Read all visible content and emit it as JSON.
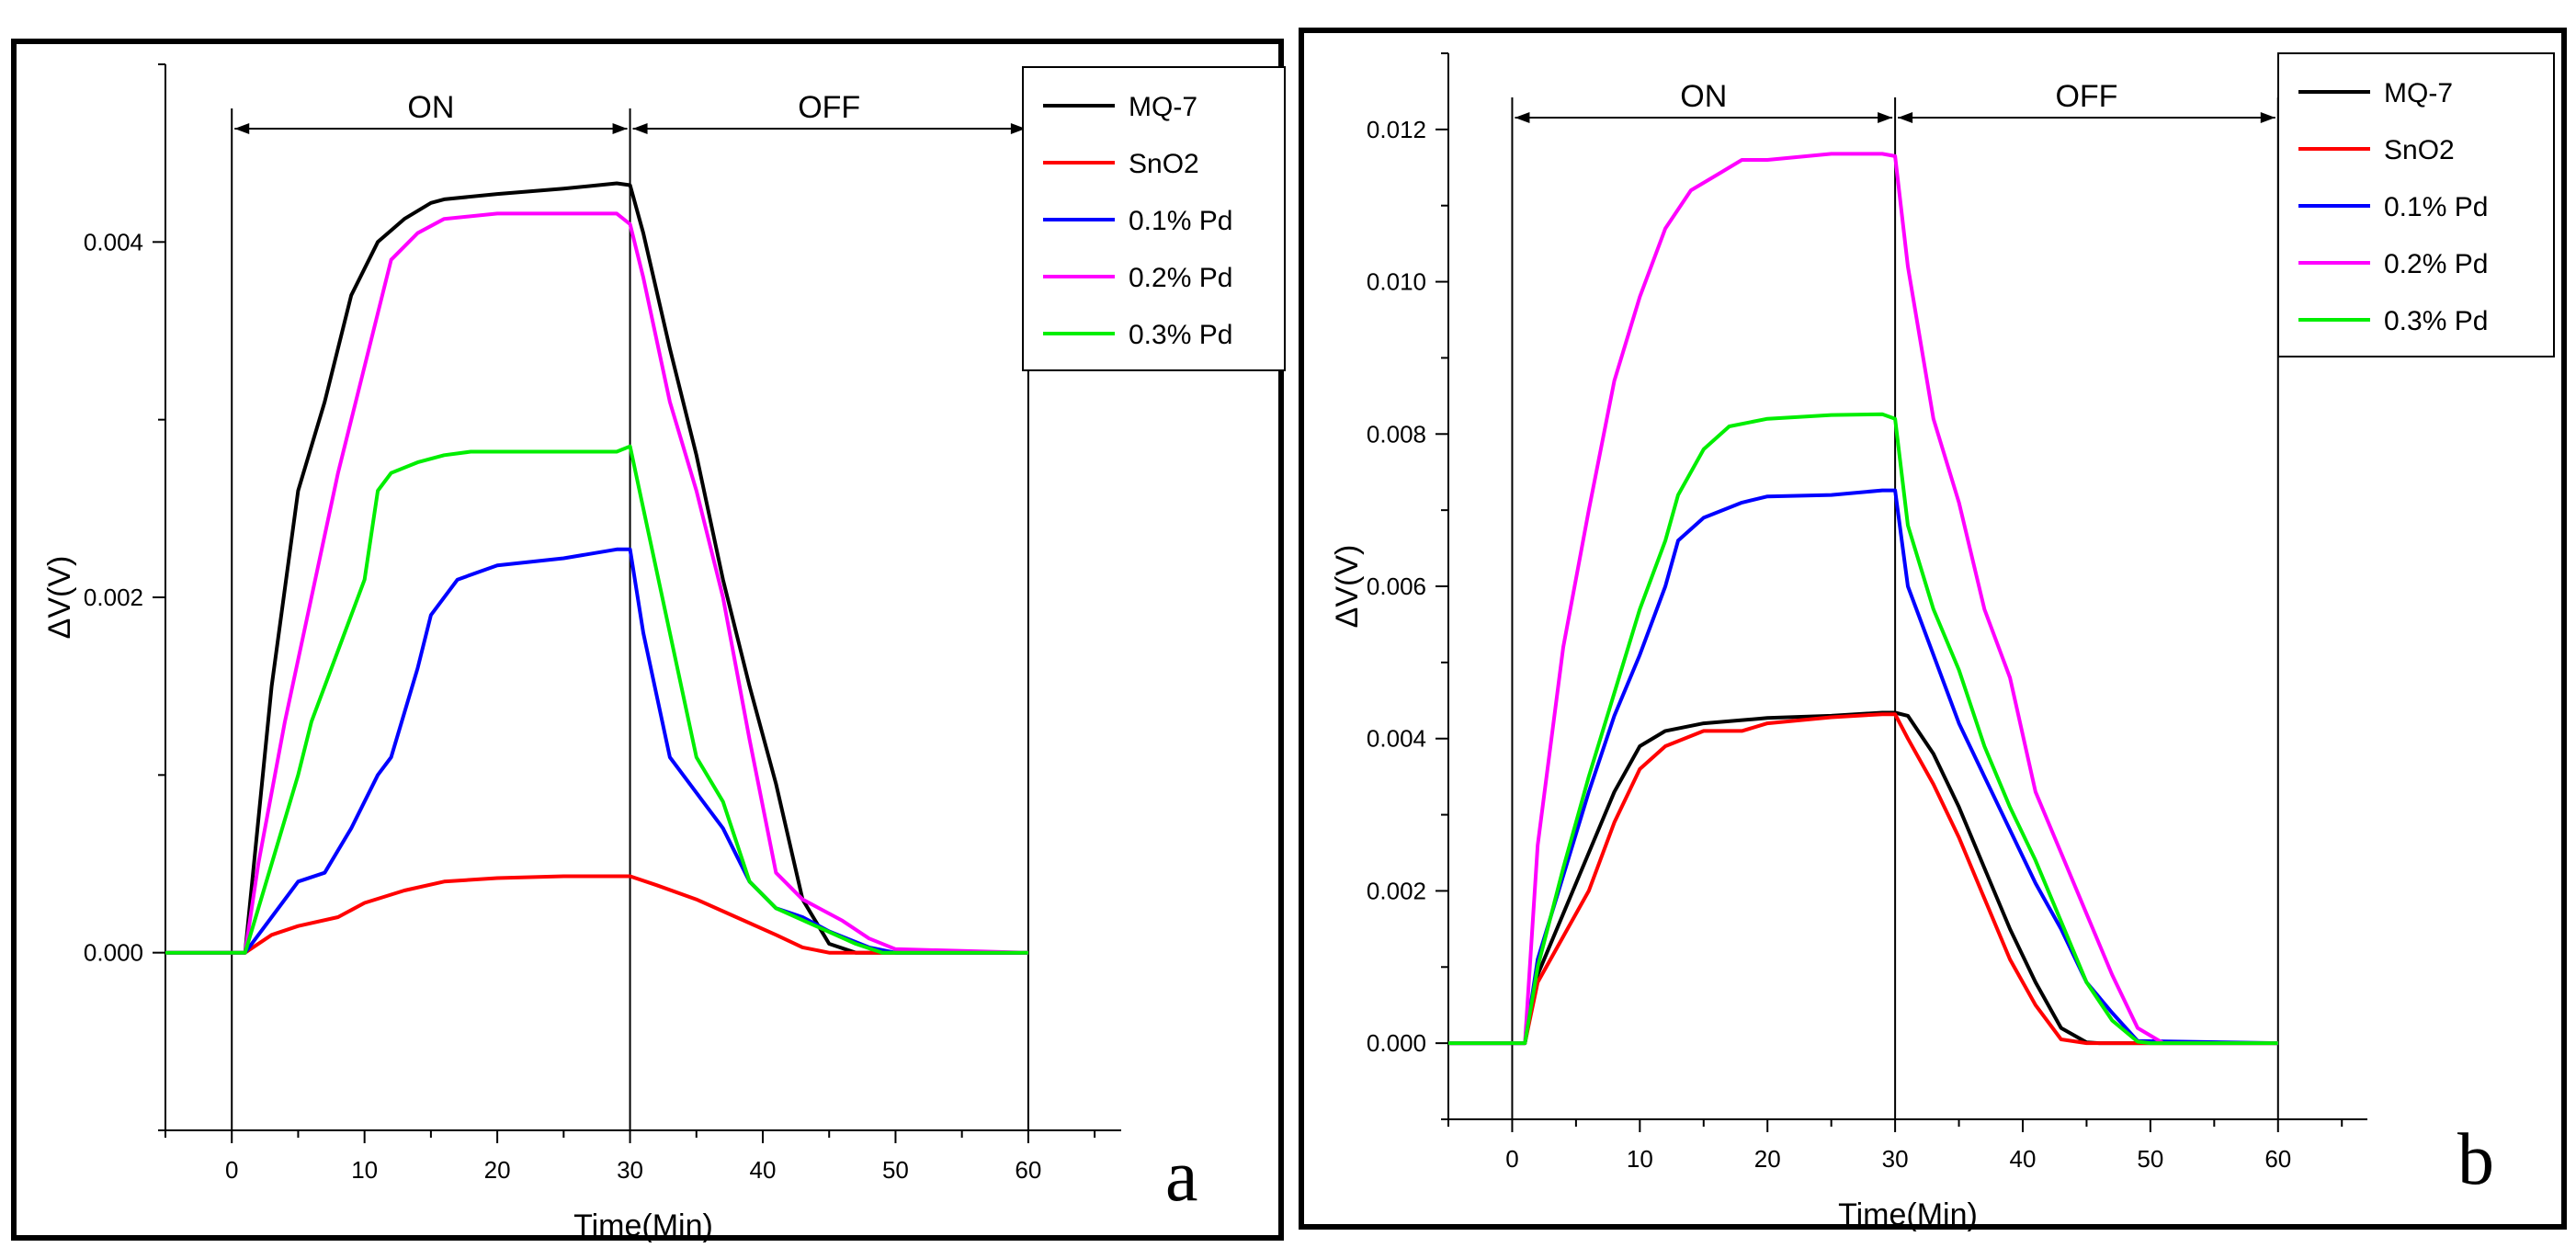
{
  "chart_data": [
    {
      "id": "a",
      "type": "line",
      "panel_label": "a",
      "xlabel": "Time(Min)",
      "ylabel": "ΔV(V)",
      "xlim": [
        -5,
        67
      ],
      "ylim": [
        -0.001,
        0.005
      ],
      "xticks": [
        0,
        10,
        20,
        30,
        40,
        50,
        60
      ],
      "xtick_labels": [
        "0",
        "10",
        "20",
        "30",
        "40",
        "50",
        "60"
      ],
      "yticks": [
        0.0,
        0.002,
        0.004
      ],
      "ytick_labels": [
        "0.000",
        "0.002",
        "0.004"
      ],
      "regions": [
        {
          "label": "ON",
          "start": 0,
          "end": 30
        },
        {
          "label": "OFF",
          "start": 30,
          "end": 60
        }
      ],
      "legend_position": "top-right",
      "series": [
        {
          "name": "MQ-7",
          "color": "#000000",
          "x": [
            -5,
            1,
            3,
            5,
            7,
            9,
            11,
            13,
            15,
            16,
            20,
            25,
            29,
            30,
            31,
            33,
            35,
            37,
            39,
            41,
            43,
            45,
            47,
            60
          ],
          "y": [
            0,
            0,
            0.0015,
            0.0026,
            0.0031,
            0.0037,
            0.004,
            0.00413,
            0.00422,
            0.00424,
            0.00427,
            0.0043,
            0.00433,
            0.00432,
            0.00405,
            0.0034,
            0.0028,
            0.0021,
            0.0015,
            0.00095,
            0.0003,
            5e-05,
            0,
            0
          ]
        },
        {
          "name": "SnO2",
          "color": "#ff0000",
          "x": [
            -5,
            1,
            3,
            5,
            8,
            10,
            13,
            16,
            20,
            25,
            29,
            30,
            32,
            35,
            38,
            41,
            43,
            45,
            47,
            60
          ],
          "y": [
            0,
            0,
            0.0001,
            0.00015,
            0.0002,
            0.00028,
            0.00035,
            0.0004,
            0.00042,
            0.00043,
            0.00043,
            0.00043,
            0.00038,
            0.0003,
            0.0002,
            0.0001,
            3e-05,
            0,
            0,
            0
          ]
        },
        {
          "name": "0.1% Pd",
          "color": "#0000ff",
          "x": [
            -5,
            1,
            3,
            5,
            7,
            9,
            11,
            12,
            14,
            15,
            17,
            20,
            25,
            29,
            30,
            31,
            33,
            35,
            37,
            39,
            41,
            43,
            45,
            48,
            50,
            60
          ],
          "y": [
            0,
            0,
            0.0002,
            0.0004,
            0.00045,
            0.0007,
            0.001,
            0.0011,
            0.0016,
            0.0019,
            0.0021,
            0.00218,
            0.00222,
            0.00227,
            0.00227,
            0.0018,
            0.0011,
            0.0009,
            0.0007,
            0.0004,
            0.00025,
            0.0002,
            0.00012,
            3e-05,
            0,
            0
          ]
        },
        {
          "name": "0.2% Pd",
          "color": "#ff00ff",
          "x": [
            -5,
            1,
            2,
            4,
            6,
            8,
            10,
            12,
            14,
            16,
            20,
            25,
            29,
            30,
            31,
            33,
            35,
            37,
            39,
            41,
            43,
            46,
            48,
            50,
            60
          ],
          "y": [
            0,
            0,
            0.0005,
            0.0013,
            0.002,
            0.0027,
            0.0033,
            0.0039,
            0.00405,
            0.00413,
            0.00416,
            0.00416,
            0.00416,
            0.0041,
            0.0038,
            0.0031,
            0.0026,
            0.002,
            0.0012,
            0.00045,
            0.0003,
            0.00018,
            8e-05,
            2e-05,
            0
          ]
        },
        {
          "name": "0.3% Pd",
          "color": "#00ee00",
          "x": [
            -5,
            1,
            3,
            5,
            6,
            8,
            10,
            11,
            12,
            14,
            16,
            18,
            20,
            25,
            29,
            30,
            31,
            33,
            35,
            37,
            39,
            41,
            44,
            47,
            49,
            60
          ],
          "y": [
            0,
            0,
            0.0005,
            0.001,
            0.0013,
            0.0017,
            0.0021,
            0.0026,
            0.0027,
            0.00276,
            0.0028,
            0.00282,
            0.00282,
            0.00282,
            0.00282,
            0.00285,
            0.0025,
            0.0018,
            0.0011,
            0.00085,
            0.0004,
            0.00025,
            0.00015,
            5e-05,
            0,
            0
          ]
        }
      ]
    },
    {
      "id": "b",
      "type": "line",
      "panel_label": "b",
      "xlabel": "Time(Min)",
      "ylabel": "ΔV(V)",
      "xlim": [
        -5,
        67
      ],
      "ylim": [
        -0.001,
        0.013
      ],
      "xticks": [
        0,
        10,
        20,
        30,
        40,
        50,
        60
      ],
      "xtick_labels": [
        "0",
        "10",
        "20",
        "30",
        "40",
        "50",
        "60"
      ],
      "yticks": [
        0.0,
        0.002,
        0.004,
        0.006,
        0.008,
        0.01,
        0.012
      ],
      "ytick_labels": [
        "0.000",
        "0.002",
        "0.004",
        "0.006",
        "0.008",
        "0.010",
        "0.012"
      ],
      "regions": [
        {
          "label": "ON",
          "start": 0,
          "end": 30
        },
        {
          "label": "OFF",
          "start": 30,
          "end": 60
        }
      ],
      "legend_position": "top-right",
      "series": [
        {
          "name": "MQ-7",
          "color": "#000000",
          "x": [
            -5,
            1,
            2,
            4,
            6,
            8,
            10,
            12,
            15,
            20,
            25,
            29,
            30,
            31,
            33,
            35,
            37,
            39,
            41,
            43,
            45,
            46,
            60
          ],
          "y": [
            0,
            0,
            0.0009,
            0.0017,
            0.0025,
            0.0033,
            0.0039,
            0.0041,
            0.0042,
            0.00427,
            0.0043,
            0.00434,
            0.00434,
            0.0043,
            0.0038,
            0.0031,
            0.0023,
            0.0015,
            0.0008,
            0.0002,
            1e-05,
            0,
            0
          ]
        },
        {
          "name": "SnO2",
          "color": "#ff0000",
          "x": [
            -5,
            1,
            2,
            4,
            6,
            8,
            10,
            12,
            15,
            18,
            20,
            25,
            29,
            30,
            31,
            33,
            35,
            37,
            39,
            41,
            43,
            45,
            46,
            60
          ],
          "y": [
            0,
            0,
            0.0008,
            0.0014,
            0.002,
            0.0029,
            0.0036,
            0.0039,
            0.0041,
            0.0041,
            0.0042,
            0.00428,
            0.00432,
            0.00432,
            0.004,
            0.0034,
            0.0027,
            0.0019,
            0.0011,
            0.0005,
            5e-05,
            0,
            0,
            0
          ]
        },
        {
          "name": "0.1% Pd",
          "color": "#0000ff",
          "x": [
            -5,
            1,
            2,
            4,
            6,
            8,
            10,
            12,
            13,
            15,
            18,
            20,
            25,
            29,
            30,
            31,
            33,
            35,
            37,
            39,
            41,
            43,
            45,
            47,
            49,
            60
          ],
          "y": [
            0,
            0,
            0.0011,
            0.0022,
            0.0033,
            0.0043,
            0.0051,
            0.006,
            0.0066,
            0.0069,
            0.0071,
            0.00718,
            0.0072,
            0.00726,
            0.00726,
            0.006,
            0.0051,
            0.0042,
            0.0035,
            0.0028,
            0.0021,
            0.0015,
            0.0008,
            0.0004,
            3e-05,
            0
          ]
        },
        {
          "name": "0.2% Pd",
          "color": "#ff00ff",
          "x": [
            -5,
            1,
            2,
            4,
            6,
            8,
            10,
            12,
            14,
            16,
            18,
            20,
            25,
            29,
            30,
            31,
            33,
            35,
            37,
            39,
            41,
            43,
            45,
            47,
            49,
            51,
            60
          ],
          "y": [
            0,
            0,
            0.0026,
            0.0052,
            0.007,
            0.0087,
            0.0098,
            0.0107,
            0.0112,
            0.0114,
            0.0116,
            0.0116,
            0.01168,
            0.01168,
            0.01165,
            0.0102,
            0.0082,
            0.0071,
            0.0057,
            0.0048,
            0.0033,
            0.0025,
            0.0017,
            0.0009,
            0.0002,
            0,
            0
          ]
        },
        {
          "name": "0.3% Pd",
          "color": "#00ee00",
          "x": [
            -5,
            1,
            2,
            4,
            6,
            8,
            10,
            12,
            13,
            15,
            17,
            20,
            25,
            29,
            30,
            31,
            33,
            35,
            37,
            39,
            41,
            43,
            45,
            47,
            49,
            50,
            60
          ],
          "y": [
            0,
            0,
            0.001,
            0.0023,
            0.0035,
            0.0046,
            0.0057,
            0.0066,
            0.0072,
            0.0078,
            0.0081,
            0.0082,
            0.00825,
            0.00826,
            0.0082,
            0.0068,
            0.0057,
            0.0049,
            0.0039,
            0.0031,
            0.0024,
            0.0016,
            0.0008,
            0.0003,
            2e-05,
            0,
            0
          ]
        }
      ]
    }
  ]
}
